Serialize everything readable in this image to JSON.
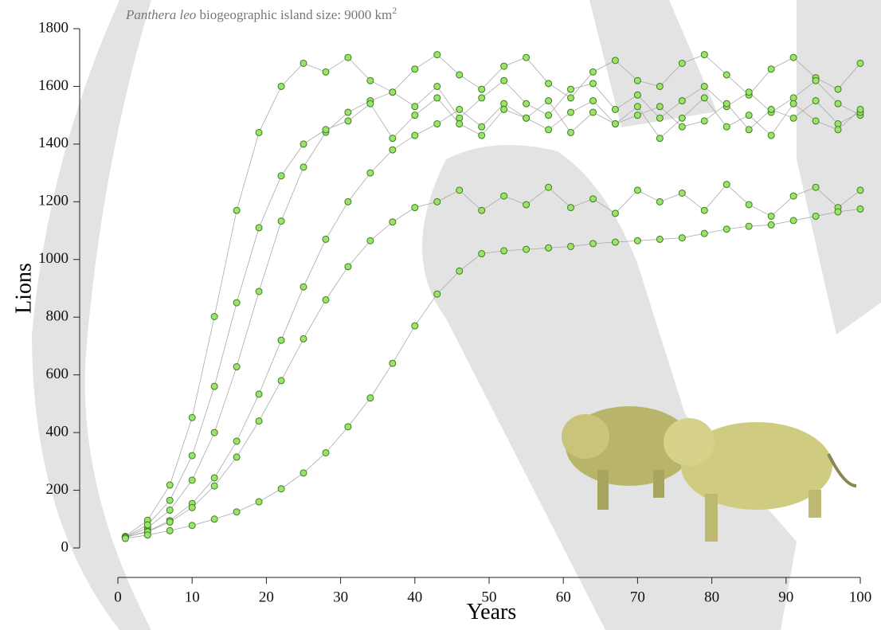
{
  "chart_data": {
    "type": "scatter",
    "title": {
      "species": "Panthera leo",
      "text": "biogeographic island size: 9000 km",
      "superscript": "2"
    },
    "x_label": "Years",
    "y_label": "Lions",
    "xlim": [
      0,
      100
    ],
    "xticks": [
      0,
      10,
      20,
      30,
      40,
      50,
      60,
      70,
      80,
      90,
      100
    ],
    "ylim": [
      0,
      1800
    ],
    "yticks": [
      0,
      200,
      400,
      600,
      800,
      1000,
      1200,
      1400,
      1600,
      1800
    ],
    "color": "#9be36a",
    "x": [
      1,
      4,
      7,
      10,
      13,
      16,
      19,
      22,
      25,
      28,
      31,
      34,
      37,
      40,
      43,
      46,
      49,
      52,
      55,
      58,
      61,
      64,
      67,
      70,
      73,
      76,
      79,
      82,
      85,
      88,
      91,
      94,
      97,
      100
    ],
    "series": [
      {
        "values": [
          40,
          96,
          218,
          452,
          802,
          1170,
          1440,
          1600,
          1680,
          1650,
          1700,
          1620,
          1580,
          1660,
          1710,
          1640,
          1590,
          1670,
          1700,
          1610,
          1560,
          1650,
          1690,
          1620,
          1600,
          1680,
          1710,
          1640,
          1570,
          1660,
          1700,
          1630,
          1590,
          1680
        ]
      },
      {
        "values": [
          37,
          70,
          131,
          235,
          400,
          628,
          889,
          1133,
          1320,
          1441,
          1510,
          1550,
          1580,
          1530,
          1600,
          1490,
          1560,
          1620,
          1540,
          1500,
          1590,
          1610,
          1520,
          1570,
          1490,
          1550,
          1600,
          1530,
          1580,
          1510,
          1560,
          1620,
          1540,
          1500
        ]
      },
      {
        "values": [
          37,
          58,
          95,
          154,
          243,
          370,
          533,
          720,
          905,
          1070,
          1200,
          1300,
          1380,
          1430,
          1470,
          1520,
          1460,
          1540,
          1490,
          1450,
          1510,
          1550,
          1470,
          1500,
          1530,
          1460,
          1480,
          1540,
          1450,
          1520,
          1490,
          1550,
          1470,
          1510
        ]
      },
      {
        "values": [
          38,
          80,
          165,
          320,
          560,
          850,
          1110,
          1290,
          1400,
          1450,
          1480,
          1540,
          1420,
          1500,
          1560,
          1470,
          1430,
          1520,
          1490,
          1550,
          1440,
          1510,
          1470,
          1530,
          1420,
          1490,
          1560,
          1460,
          1500,
          1430,
          1540,
          1480,
          1450,
          1520
        ]
      },
      {
        "values": [
          37,
          56,
          90,
          140,
          215,
          315,
          440,
          580,
          725,
          860,
          975,
          1065,
          1130,
          1180,
          1200,
          1240,
          1170,
          1220,
          1190,
          1250,
          1180,
          1210,
          1160,
          1240,
          1200,
          1230,
          1170,
          1260,
          1190,
          1150,
          1220,
          1250,
          1180,
          1240
        ]
      },
      {
        "values": [
          33,
          45,
          60,
          78,
          100,
          125,
          160,
          205,
          260,
          330,
          420,
          520,
          640,
          770,
          880,
          960,
          1020,
          1030,
          1035,
          1040,
          1045,
          1055,
          1060,
          1065,
          1070,
          1075,
          1090,
          1105,
          1115,
          1120,
          1135,
          1150,
          1165,
          1175
        ]
      }
    ]
  }
}
